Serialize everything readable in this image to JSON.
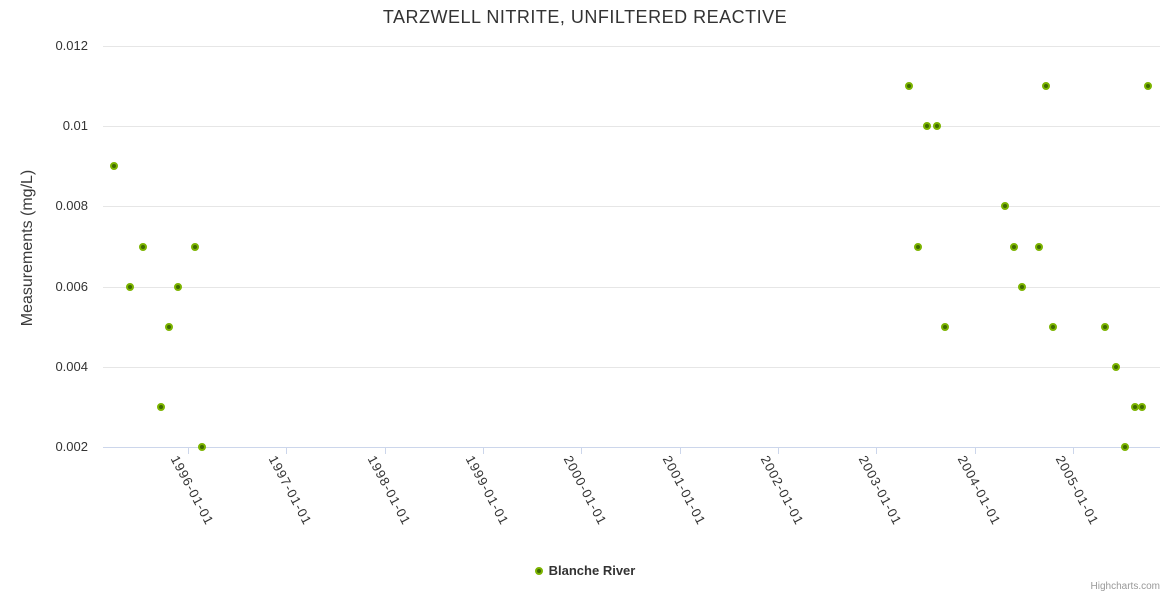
{
  "credit": "Highcharts.com",
  "colors": {
    "marker_ring": "#7cb400",
    "marker_core": "#3f6b01",
    "gridline": "#e6e6e6",
    "axis_line": "#ccd6eb",
    "title_text": "#333333",
    "label_text": "#333333",
    "credit_text": "#999999",
    "background": "#ffffff"
  },
  "chart_data": {
    "type": "scatter",
    "title": "TARZWELL NITRITE, UNFILTERED REACTIVE",
    "xlabel": "",
    "ylabel": "Measurements (mg/L)",
    "ylim": [
      0.002,
      0.012
    ],
    "yticks": [
      0.002,
      0.004,
      0.006,
      0.008,
      0.01,
      0.012
    ],
    "ytick_labels": [
      "0.002",
      "0.004",
      "0.006",
      "0.008",
      "0.01",
      "0.012"
    ],
    "xlim": [
      "1995-02-20",
      "2005-11-20"
    ],
    "xtick_labels": [
      "1996-01-01",
      "1997-01-01",
      "1998-01-01",
      "1999-01-01",
      "2000-01-01",
      "2001-01-01",
      "2002-01-01",
      "2003-01-01",
      "2004-01-01",
      "2005-01-01"
    ],
    "grid": "horizontal",
    "legend_position": "bottom-center",
    "series": [
      {
        "name": "Blanche River",
        "color": "#7cb400",
        "points": [
          [
            "1995-04-02",
            0.009
          ],
          [
            "1995-05-31",
            0.006
          ],
          [
            "1995-07-18",
            0.007
          ],
          [
            "1995-09-23",
            0.003
          ],
          [
            "1995-10-23",
            0.005
          ],
          [
            "1995-11-25",
            0.006
          ],
          [
            "1996-01-27",
            0.007
          ],
          [
            "1996-02-22",
            0.002
          ],
          [
            "2003-05-02",
            0.011
          ],
          [
            "2003-06-04",
            0.007
          ],
          [
            "2003-07-07",
            0.01
          ],
          [
            "2003-08-13",
            0.01
          ],
          [
            "2003-09-12",
            0.005
          ],
          [
            "2004-04-25",
            0.008
          ],
          [
            "2004-05-28",
            0.007
          ],
          [
            "2004-06-27",
            0.006
          ],
          [
            "2004-08-28",
            0.007
          ],
          [
            "2004-09-23",
            0.011
          ],
          [
            "2004-10-19",
            0.005
          ],
          [
            "2005-05-01",
            0.005
          ],
          [
            "2005-06-11",
            0.004
          ],
          [
            "2005-07-14",
            0.002
          ],
          [
            "2005-08-20",
            0.003
          ],
          [
            "2005-09-15",
            0.003
          ],
          [
            "2005-10-08",
            0.011
          ]
        ]
      }
    ]
  }
}
